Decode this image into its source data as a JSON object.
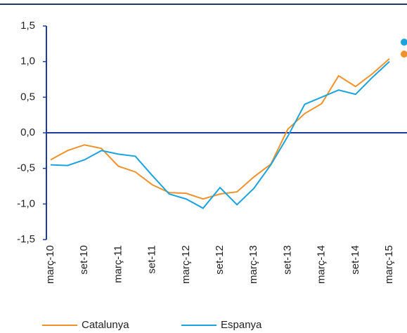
{
  "chart_data": {
    "type": "line",
    "categories": [
      "març-10",
      null,
      "set-10",
      null,
      "març-11",
      null,
      "set-11",
      null,
      "març-12",
      null,
      "set-12",
      null,
      "març-13",
      null,
      "set-13",
      null,
      "març-14",
      null,
      "set-14",
      null,
      "març-15"
    ],
    "series": [
      {
        "name": "Catalunya",
        "color": "#f0922b",
        "values": [
          -0.38,
          -0.25,
          -0.17,
          -0.22,
          -0.47,
          -0.55,
          -0.73,
          -0.84,
          -0.85,
          -0.93,
          -0.86,
          -0.83,
          -0.62,
          -0.44,
          0.05,
          0.27,
          0.41,
          0.8,
          0.65,
          0.83,
          1.04
        ]
      },
      {
        "name": "Espanya",
        "color": "#1aa3de",
        "values": [
          -0.45,
          -0.46,
          -0.38,
          -0.25,
          -0.3,
          -0.33,
          -0.6,
          -0.86,
          -0.93,
          -1.06,
          -0.77,
          -1.01,
          -0.78,
          -0.45,
          -0.05,
          0.4,
          0.5,
          0.6,
          0.54,
          0.78,
          1.0
        ]
      }
    ],
    "ylim": [
      -1.5,
      1.5
    ],
    "yticks": [
      {
        "value": -1.5,
        "label": "-1,5"
      },
      {
        "value": -1.0,
        "label": "-1,0"
      },
      {
        "value": -0.5,
        "label": "-0,5"
      },
      {
        "value": 0,
        "label": "0,0"
      },
      {
        "value": 0.5,
        "label": "0,5"
      },
      {
        "value": 1.0,
        "label": "1,0"
      },
      {
        "value": 1.5,
        "label": "1,5"
      }
    ]
  }
}
